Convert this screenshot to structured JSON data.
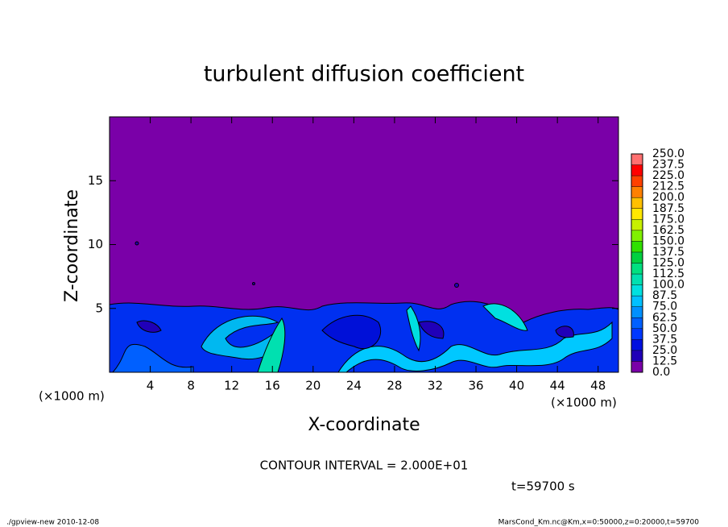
{
  "chart_data": {
    "type": "contour",
    "title": "turbulent diffusion coefficient",
    "xlabel": "X-coordinate",
    "ylabel": "Z-coordinate",
    "x_unit": "(×1000 m)",
    "y_unit": "(×1000 m)",
    "xlim": [
      0,
      50
    ],
    "ylim": [
      0,
      20
    ],
    "xticks": [
      4,
      8,
      12,
      16,
      20,
      24,
      28,
      32,
      36,
      40,
      44,
      48
    ],
    "yticks": [
      5,
      10,
      15
    ],
    "colorbar": {
      "levels": [
        {
          "value": 0,
          "label": "0.0"
        },
        {
          "value": 12.5,
          "label": "12.5"
        },
        {
          "value": 25,
          "label": "25.0"
        },
        {
          "value": 37.5,
          "label": "37.5"
        },
        {
          "value": 50,
          "label": "50.0"
        },
        {
          "value": 62.5,
          "label": "62.5"
        },
        {
          "value": 75,
          "label": "75.0"
        },
        {
          "value": 87.5,
          "label": "87.5"
        },
        {
          "value": 100,
          "label": "100.0"
        },
        {
          "value": 112.5,
          "label": "112.5"
        },
        {
          "value": 125,
          "label": "125.0"
        },
        {
          "value": 137.5,
          "label": "137.5"
        },
        {
          "value": 150,
          "label": "150.0"
        },
        {
          "value": 162.5,
          "label": "162.5"
        },
        {
          "value": 175,
          "label": "175.0"
        },
        {
          "value": 187.5,
          "label": "187.5"
        },
        {
          "value": 200,
          "label": "200.0"
        },
        {
          "value": 212.5,
          "label": "212.5"
        },
        {
          "value": 225,
          "label": "225.0"
        },
        {
          "value": 237.5,
          "label": "237.5"
        },
        {
          "value": 250,
          "label": "250.0"
        }
      ],
      "colors": [
        "#7a00a8",
        "#2000b8",
        "#0010e0",
        "#0038ff",
        "#0060ff",
        "#0090ff",
        "#00c0ff",
        "#00e0e0",
        "#00e0b0",
        "#00e080",
        "#00d040",
        "#30e000",
        "#80f000",
        "#c8f000",
        "#ffe800",
        "#ffc000",
        "#ff8000",
        "#ff4000",
        "#ff0000",
        "#ff7070"
      ]
    },
    "contour_interval": "CONTOUR INTERVAL = 2.000E+01",
    "time_label": "t=59700 s",
    "footer_left": "./gpview-new   2010-12-08",
    "footer_right": "MarsCond_Km.nc@Km,x=0:50000,z=0:20000,t=59700"
  }
}
